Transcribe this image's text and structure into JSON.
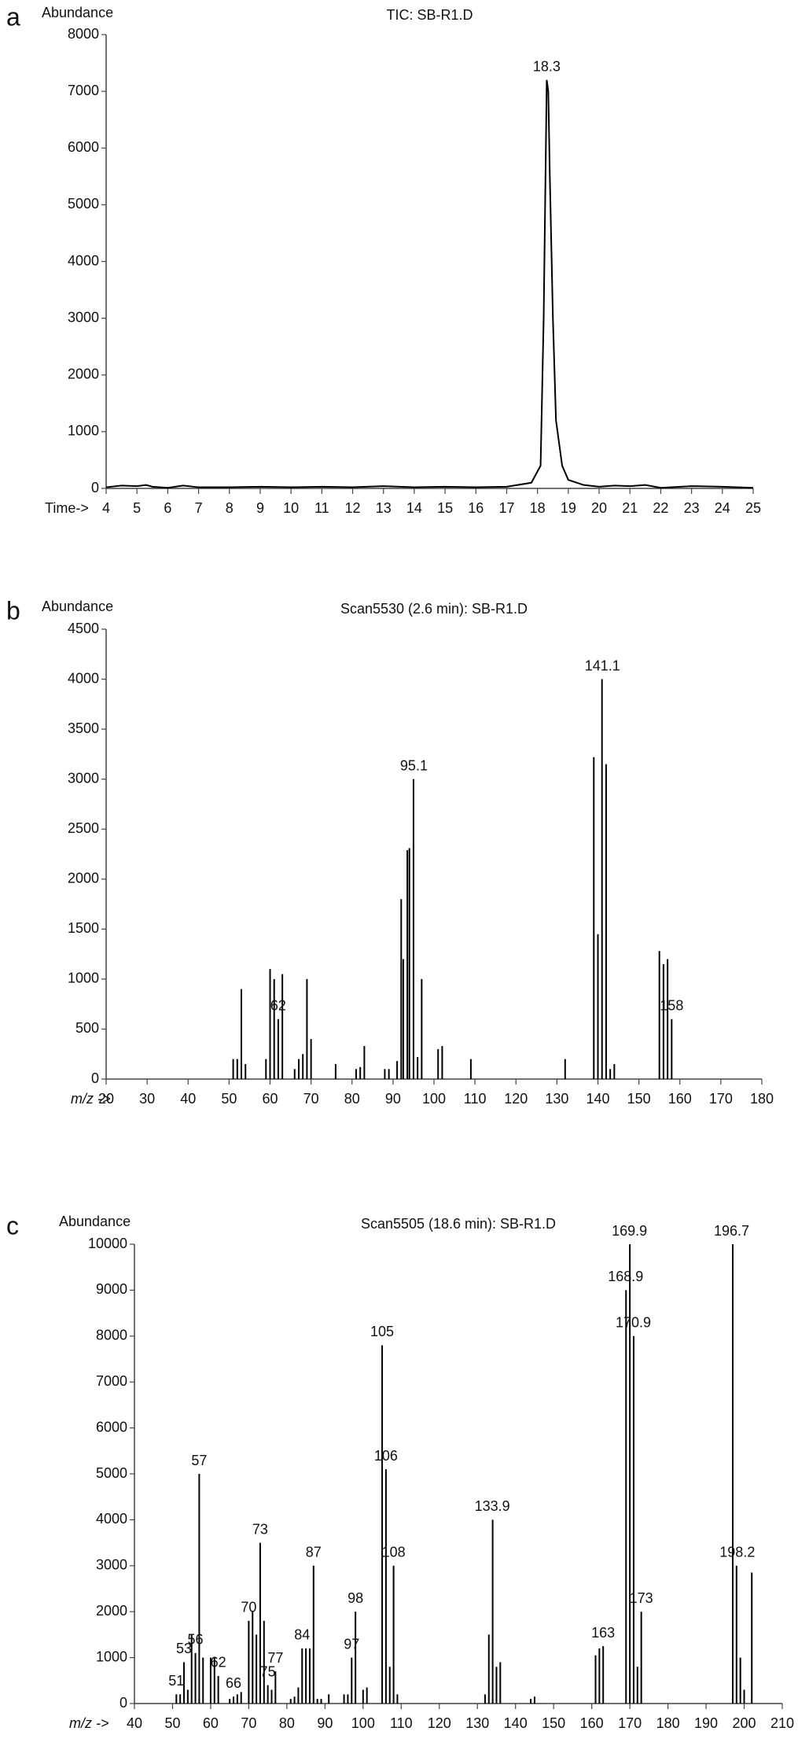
{
  "chart_data": [
    {
      "type": "line",
      "panel_label": "a",
      "title": "TIC: SB-R1.D",
      "ylabel": "Abundance",
      "xlabel": "Time->",
      "x": [
        4,
        4.5,
        5,
        5.3,
        5.5,
        6,
        6.5,
        7,
        8,
        9,
        10,
        11,
        12,
        13,
        14,
        15,
        16,
        17,
        17.8,
        18.1,
        18.2,
        18.3,
        18.35,
        18.4,
        18.5,
        18.6,
        18.8,
        19,
        19.5,
        20,
        20.5,
        21,
        21.5,
        22,
        23,
        24,
        25
      ],
      "values": [
        20,
        50,
        40,
        60,
        30,
        10,
        50,
        20,
        20,
        30,
        20,
        30,
        20,
        40,
        20,
        30,
        20,
        30,
        100,
        400,
        3000,
        7200,
        7000,
        5500,
        3000,
        1200,
        400,
        150,
        60,
        30,
        50,
        40,
        60,
        10,
        40,
        30,
        10
      ],
      "color": "#000000",
      "xlim": [
        4,
        25
      ],
      "xticks": [
        4,
        5,
        6,
        7,
        8,
        9,
        10,
        11,
        12,
        13,
        14,
        15,
        16,
        17,
        18,
        19,
        20,
        21,
        22,
        23,
        24,
        25
      ],
      "ylim": [
        0,
        8000
      ],
      "yticks": [
        0,
        1000,
        2000,
        3000,
        4000,
        5000,
        6000,
        7000,
        8000
      ],
      "peak_labels": [
        18.3
      ]
    },
    {
      "type": "stem",
      "panel_label": "b",
      "title": "Scan5530 (2.6 min): SB-R1.D",
      "ylabel": "Abundance",
      "xlabel": "m/z ->",
      "x": [
        51,
        52,
        53,
        54,
        59,
        60,
        61,
        62,
        63,
        66,
        67,
        68,
        69,
        70,
        76,
        81,
        82,
        83,
        88,
        89,
        91,
        92,
        92.5,
        93.5,
        94,
        95,
        96,
        97,
        101,
        102,
        109,
        132,
        139,
        140,
        141,
        142,
        143,
        144,
        155,
        156,
        157,
        158
      ],
      "values": [
        200,
        200,
        900,
        150,
        200,
        1100,
        1000,
        600,
        1050,
        100,
        200,
        250,
        1000,
        400,
        150,
        100,
        120,
        330,
        100,
        100,
        180,
        1800,
        1200,
        2290,
        2310,
        3000,
        220,
        1000,
        300,
        330,
        200,
        200,
        3220,
        1450,
        4000,
        3150,
        100,
        150,
        1280,
        1150,
        1200,
        600
      ],
      "color": "#000000",
      "xlim": [
        20,
        180
      ],
      "xticks": [
        20,
        30,
        40,
        50,
        60,
        70,
        80,
        90,
        100,
        110,
        120,
        130,
        140,
        150,
        160,
        170,
        180
      ],
      "ylim": [
        0,
        4500
      ],
      "yticks": [
        0,
        500,
        1000,
        1500,
        2000,
        2500,
        3000,
        3500,
        4000,
        4500
      ],
      "peak_labels": [
        62,
        95.1,
        141.1,
        158
      ]
    },
    {
      "type": "stem",
      "panel_label": "c",
      "title": "Scan5505 (18.6 min): SB-R1.D",
      "ylabel": "Abundance",
      "xlabel": "m/z ->",
      "x": [
        51,
        52,
        53,
        54,
        55,
        56,
        57,
        58,
        60,
        61,
        62,
        65,
        66,
        67,
        68,
        70,
        71,
        72,
        73,
        74,
        75,
        76,
        77,
        81,
        82,
        83,
        84,
        85,
        86,
        87,
        88,
        89,
        91,
        95,
        96,
        97,
        98,
        100,
        101,
        105,
        106,
        107,
        108,
        109,
        132,
        133,
        134,
        135,
        136,
        144,
        145,
        161,
        162,
        163,
        169,
        170,
        171,
        172,
        173,
        197,
        198,
        199,
        200,
        202
      ],
      "values": [
        200,
        200,
        900,
        300,
        1500,
        1100,
        5000,
        1000,
        1000,
        1000,
        600,
        100,
        150,
        200,
        250,
        1800,
        2000,
        1500,
        3500,
        1800,
        400,
        300,
        700,
        100,
        150,
        350,
        1200,
        1200,
        1200,
        3000,
        100,
        100,
        200,
        200,
        200,
        1000,
        2000,
        300,
        350,
        7800,
        5100,
        800,
        3000,
        200,
        200,
        1500,
        4000,
        800,
        900,
        100,
        150,
        1050,
        1200,
        1250,
        9000,
        10000,
        8000,
        800,
        2000,
        10000,
        3000,
        1000,
        300,
        2850
      ],
      "color": "#000000",
      "xlim": [
        40,
        210
      ],
      "xticks": [
        40,
        50,
        60,
        70,
        80,
        90,
        100,
        110,
        120,
        130,
        140,
        150,
        160,
        170,
        180,
        190,
        200,
        210
      ],
      "ylim": [
        0,
        10000
      ],
      "yticks": [
        0,
        1000,
        2000,
        3000,
        4000,
        5000,
        6000,
        7000,
        8000,
        9000,
        10000
      ],
      "peak_labels": [
        51,
        53,
        56,
        57,
        62,
        66,
        70,
        73,
        75,
        77,
        84,
        87,
        97,
        98,
        105,
        106,
        108,
        133.9,
        163,
        168.9,
        169.9,
        170.9,
        173,
        196.7,
        198.2
      ]
    }
  ]
}
